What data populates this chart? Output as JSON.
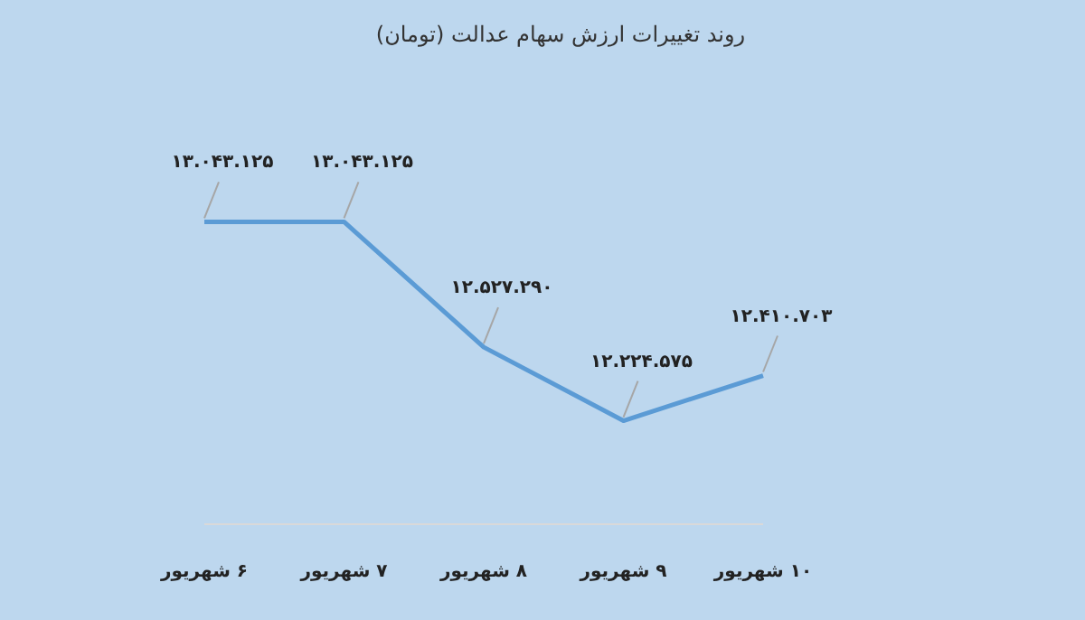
{
  "chart_data": {
    "type": "line",
    "title": "روند تغییرات ارزش سهام عدالت (تومان)",
    "categories": [
      "۶ شهریور",
      "۷ شهریور",
      "۸ شهریور",
      "۹ شهریور",
      "۱۰ شهریور"
    ],
    "series": [
      {
        "color": "#5b9bd5",
        "values": [
          13043125,
          13043125,
          12527290,
          12224575,
          12410703
        ],
        "value_labels": [
          "۱۳.۰۴۳.۱۲۵",
          "۱۳.۰۴۳.۱۲۵",
          "۱۲.۵۲۷.۲۹۰",
          "۱۲.۲۲۴.۵۷۵",
          "۱۲.۴۱۰.۷۰۳"
        ]
      }
    ],
    "marker": "none",
    "line_style": "solid",
    "tick_labels": "x"
  }
}
